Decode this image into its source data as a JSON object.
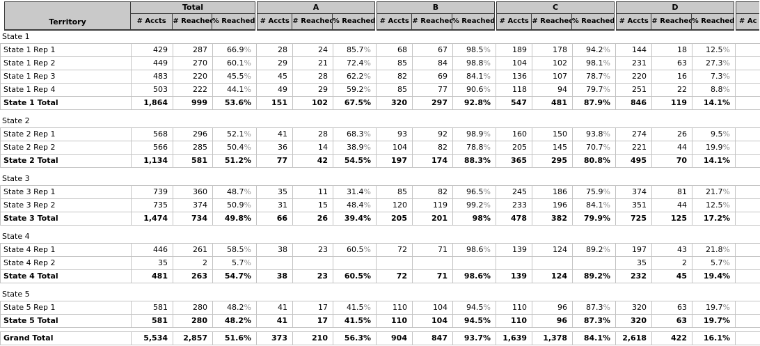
{
  "header": {
    "territory_label": "Territory",
    "groups": [
      "Total",
      "A",
      "B",
      "C",
      "D"
    ],
    "subheaders": [
      "# Accts",
      "# Reached",
      "% Reached"
    ],
    "partial_subheader": "# Ac"
  },
  "sections": [
    {
      "label": "State 1",
      "rows": [
        {
          "name": "State 1 Rep 1",
          "bold": false,
          "cells": [
            "429",
            "287",
            "66.9%",
            "28",
            "24",
            "85.7%",
            "68",
            "67",
            "98.5%",
            "189",
            "178",
            "94.2%",
            "144",
            "18",
            "12.5%"
          ]
        },
        {
          "name": "State 1 Rep 2",
          "bold": false,
          "cells": [
            "449",
            "270",
            "60.1%",
            "29",
            "21",
            "72.4%",
            "85",
            "84",
            "98.8%",
            "104",
            "102",
            "98.1%",
            "231",
            "63",
            "27.3%"
          ]
        },
        {
          "name": "State 1 Rep 3",
          "bold": false,
          "cells": [
            "483",
            "220",
            "45.5%",
            "45",
            "28",
            "62.2%",
            "82",
            "69",
            "84.1%",
            "136",
            "107",
            "78.7%",
            "220",
            "16",
            "7.3%"
          ]
        },
        {
          "name": "State 1 Rep 4",
          "bold": false,
          "cells": [
            "503",
            "222",
            "44.1%",
            "49",
            "29",
            "59.2%",
            "85",
            "77",
            "90.6%",
            "118",
            "94",
            "79.7%",
            "251",
            "22",
            "8.8%"
          ]
        },
        {
          "name": "State 1 Total",
          "bold": true,
          "cells": [
            "1,864",
            "999",
            "53.6%",
            "151",
            "102",
            "67.5%",
            "320",
            "297",
            "92.8%",
            "547",
            "481",
            "87.9%",
            "846",
            "119",
            "14.1%"
          ]
        }
      ]
    },
    {
      "label": "State 2",
      "rows": [
        {
          "name": "State 2 Rep 1",
          "bold": false,
          "cells": [
            "568",
            "296",
            "52.1%",
            "41",
            "28",
            "68.3%",
            "93",
            "92",
            "98.9%",
            "160",
            "150",
            "93.8%",
            "274",
            "26",
            "9.5%"
          ]
        },
        {
          "name": "State 2 Rep 2",
          "bold": false,
          "cells": [
            "566",
            "285",
            "50.4%",
            "36",
            "14",
            "38.9%",
            "104",
            "82",
            "78.8%",
            "205",
            "145",
            "70.7%",
            "221",
            "44",
            "19.9%"
          ]
        },
        {
          "name": "State 2 Total",
          "bold": true,
          "cells": [
            "1,134",
            "581",
            "51.2%",
            "77",
            "42",
            "54.5%",
            "197",
            "174",
            "88.3%",
            "365",
            "295",
            "80.8%",
            "495",
            "70",
            "14.1%"
          ]
        }
      ]
    },
    {
      "label": "State 3",
      "rows": [
        {
          "name": "State 3 Rep 1",
          "bold": false,
          "cells": [
            "739",
            "360",
            "48.7%",
            "35",
            "11",
            "31.4%",
            "85",
            "82",
            "96.5%",
            "245",
            "186",
            "75.9%",
            "374",
            "81",
            "21.7%"
          ]
        },
        {
          "name": "State 3 Rep 2",
          "bold": false,
          "cells": [
            "735",
            "374",
            "50.9%",
            "31",
            "15",
            "48.4%",
            "120",
            "119",
            "99.2%",
            "233",
            "196",
            "84.1%",
            "351",
            "44",
            "12.5%"
          ]
        },
        {
          "name": "State 3 Total",
          "bold": true,
          "cells": [
            "1,474",
            "734",
            "49.8%",
            "66",
            "26",
            "39.4%",
            "205",
            "201",
            "98%",
            "478",
            "382",
            "79.9%",
            "725",
            "125",
            "17.2%"
          ]
        }
      ]
    },
    {
      "label": "State 4",
      "rows": [
        {
          "name": "State 4 Rep 1",
          "bold": false,
          "cells": [
            "446",
            "261",
            "58.5%",
            "38",
            "23",
            "60.5%",
            "72",
            "71",
            "98.6%",
            "139",
            "124",
            "89.2%",
            "197",
            "43",
            "21.8%"
          ]
        },
        {
          "name": "State 4 Rep 2",
          "bold": false,
          "cells": [
            "35",
            "2",
            "5.7%",
            "",
            "",
            "",
            "",
            "",
            "",
            "",
            "",
            "",
            "35",
            "2",
            "5.7%"
          ]
        },
        {
          "name": "State 4 Total",
          "bold": true,
          "cells": [
            "481",
            "263",
            "54.7%",
            "38",
            "23",
            "60.5%",
            "72",
            "71",
            "98.6%",
            "139",
            "124",
            "89.2%",
            "232",
            "45",
            "19.4%"
          ]
        }
      ]
    },
    {
      "label": "State 5",
      "rows": [
        {
          "name": "State 5 Rep 1",
          "bold": false,
          "cells": [
            "581",
            "280",
            "48.2%",
            "41",
            "17",
            "41.5%",
            "110",
            "104",
            "94.5%",
            "110",
            "96",
            "87.3%",
            "320",
            "63",
            "19.7%"
          ]
        },
        {
          "name": "State 5 Total",
          "bold": true,
          "cells": [
            "581",
            "280",
            "48.2%",
            "41",
            "17",
            "41.5%",
            "110",
            "104",
            "94.5%",
            "110",
            "96",
            "87.3%",
            "320",
            "63",
            "19.7%"
          ]
        }
      ]
    }
  ],
  "grand_total": {
    "name": "Grand Total",
    "cells": [
      "5,534",
      "2,857",
      "51.6%",
      "373",
      "210",
      "56.3%",
      "904",
      "847",
      "93.7%",
      "1,639",
      "1,378",
      "84.1%",
      "2,618",
      "422",
      "16.1%"
    ]
  },
  "colors": {
    "header_bg": "#c9c9c9",
    "header_border": "#3b3b3b",
    "grid_line": "#c3c3c3",
    "percent_sign_gray": "#8e8e8e"
  }
}
